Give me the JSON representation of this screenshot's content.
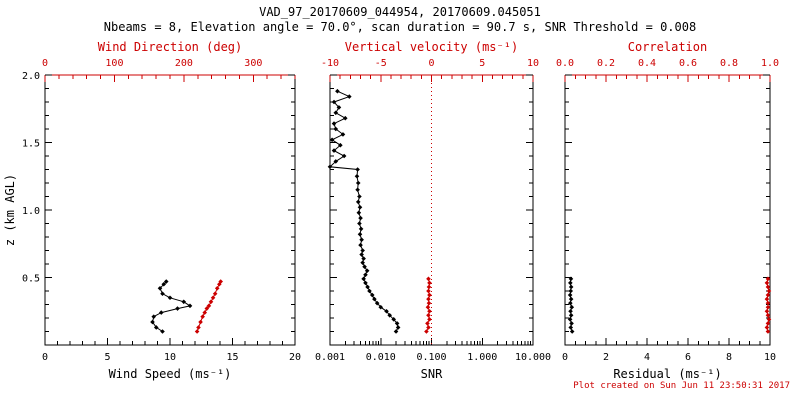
{
  "header": {
    "title": "VAD_97_20170609_044954, 20170609.045051",
    "subtitle": "Nbeams = 8, Elevation angle = 70.0°, scan duration = 90.7 s, SNR Threshold = 0.008"
  },
  "footer": {
    "created": "Plot created on Sun Jun 11 23:50:31 2017"
  },
  "colors": {
    "axis_black": "#000000",
    "overlay_red": "#cc0000",
    "background": "#ffffff"
  },
  "chart_data": [
    {
      "type": "line",
      "name": "wind-speed-direction",
      "ylabel": "z (km AGL)",
      "ylim": [
        0,
        2
      ],
      "yticks": [
        0.5,
        1.0,
        1.5,
        2.0
      ],
      "ytick_labels": [
        "0.5",
        "1.0",
        "1.5",
        "2.0"
      ],
      "y_minor": 0.1,
      "bottom_axis": {
        "label": "Wind Speed (ms⁻¹)",
        "lim": [
          0,
          20
        ],
        "ticks": [
          0,
          5,
          10,
          15,
          20
        ],
        "tick_labels": [
          "0",
          "5",
          "10",
          "15",
          "20"
        ],
        "minor": 1,
        "color": "#000000"
      },
      "top_axis": {
        "label": "Wind Direction (deg)",
        "lim": [
          0,
          360
        ],
        "ticks": [
          0,
          100,
          200,
          300
        ],
        "tick_labels": [
          "0",
          "100",
          "200",
          "300"
        ],
        "minor": 20,
        "color": "#cc0000"
      },
      "series": [
        {
          "name": "wind-speed",
          "axis": "bottom",
          "color": "#000000",
          "points": [
            [
              9.4,
              0.1
            ],
            [
              8.9,
              0.13
            ],
            [
              8.6,
              0.17
            ],
            [
              8.7,
              0.21
            ],
            [
              9.3,
              0.24
            ],
            [
              10.6,
              0.27
            ],
            [
              11.6,
              0.29
            ],
            [
              11.1,
              0.32
            ],
            [
              10.0,
              0.35
            ],
            [
              9.4,
              0.38
            ],
            [
              9.2,
              0.42
            ],
            [
              9.5,
              0.45
            ],
            [
              9.7,
              0.47
            ]
          ]
        },
        {
          "name": "wind-direction",
          "axis": "top",
          "color": "#cc0000",
          "points": [
            [
              219,
              0.1
            ],
            [
              221,
              0.13
            ],
            [
              224,
              0.17
            ],
            [
              227,
              0.21
            ],
            [
              230,
              0.24
            ],
            [
              233,
              0.27
            ],
            [
              236,
              0.29
            ],
            [
              239,
              0.32
            ],
            [
              242,
              0.35
            ],
            [
              245,
              0.38
            ],
            [
              248,
              0.42
            ],
            [
              251,
              0.45
            ],
            [
              253,
              0.47
            ]
          ]
        }
      ]
    },
    {
      "type": "line",
      "name": "snr-vertical-velocity",
      "ylim": [
        0,
        2
      ],
      "yticks": [
        0.5,
        1.0,
        1.5,
        2.0
      ],
      "y_minor": 0.1,
      "bottom_axis": {
        "label": "SNR",
        "lim": [
          0.001,
          10
        ],
        "log": true,
        "ticks": [
          0.001,
          0.01,
          0.1,
          1,
          10
        ],
        "tick_labels": [
          "0.001",
          "0.010",
          "0.100",
          "1.000",
          "10.000"
        ],
        "color": "#000000"
      },
      "top_axis": {
        "label": "Vertical velocity (ms⁻¹)",
        "lim": [
          -10,
          10
        ],
        "ticks": [
          -10,
          -5,
          0,
          5,
          10
        ],
        "tick_labels": [
          "-10",
          "-5",
          "0",
          "5",
          "10"
        ],
        "minor": 1,
        "color": "#cc0000",
        "zero_line": true
      },
      "series": [
        {
          "name": "snr-profile",
          "axis": "bottom",
          "color": "#000000",
          "points": [
            [
              0.02,
              0.1
            ],
            [
              0.022,
              0.13
            ],
            [
              0.021,
              0.16
            ],
            [
              0.018,
              0.19
            ],
            [
              0.015,
              0.22
            ],
            [
              0.013,
              0.25
            ],
            [
              0.01,
              0.28
            ],
            [
              0.0085,
              0.31
            ],
            [
              0.0075,
              0.34
            ],
            [
              0.0068,
              0.37
            ],
            [
              0.006,
              0.4
            ],
            [
              0.0055,
              0.43
            ],
            [
              0.005,
              0.46
            ],
            [
              0.0046,
              0.49
            ],
            [
              0.005,
              0.52
            ],
            [
              0.0054,
              0.55
            ],
            [
              0.0048,
              0.58
            ],
            [
              0.0044,
              0.61
            ],
            [
              0.0046,
              0.64
            ],
            [
              0.0042,
              0.67
            ],
            [
              0.0044,
              0.7
            ],
            [
              0.004,
              0.74
            ],
            [
              0.0042,
              0.78
            ],
            [
              0.0039,
              0.82
            ],
            [
              0.0041,
              0.86
            ],
            [
              0.0038,
              0.9
            ],
            [
              0.004,
              0.94
            ],
            [
              0.0037,
              0.98
            ],
            [
              0.0039,
              1.02
            ],
            [
              0.0036,
              1.06
            ],
            [
              0.0038,
              1.1
            ],
            [
              0.0035,
              1.15
            ],
            [
              0.0036,
              1.2
            ],
            [
              0.0034,
              1.25
            ],
            [
              0.0035,
              1.3
            ],
            [
              0.001,
              1.32
            ],
            [
              0.0013,
              1.36
            ],
            [
              0.0019,
              1.4
            ],
            [
              0.0012,
              1.44
            ],
            [
              0.0016,
              1.48
            ],
            [
              0.0011,
              1.52
            ],
            [
              0.0018,
              1.56
            ],
            [
              0.0013,
              1.6
            ],
            [
              0.0012,
              1.64
            ],
            [
              0.002,
              1.68
            ],
            [
              0.0013,
              1.72
            ],
            [
              0.0015,
              1.76
            ],
            [
              0.0012,
              1.8
            ],
            [
              0.0024,
              1.84
            ],
            [
              0.0014,
              1.88
            ]
          ]
        },
        {
          "name": "vertical-velocity",
          "axis": "top",
          "color": "#cc0000",
          "points": [
            [
              -0.5,
              0.1
            ],
            [
              -0.3,
              0.13
            ],
            [
              -0.4,
              0.16
            ],
            [
              -0.2,
              0.19
            ],
            [
              -0.3,
              0.22
            ],
            [
              -0.2,
              0.25
            ],
            [
              -0.35,
              0.28
            ],
            [
              -0.25,
              0.31
            ],
            [
              -0.3,
              0.34
            ],
            [
              -0.2,
              0.37
            ],
            [
              -0.3,
              0.4
            ],
            [
              -0.25,
              0.43
            ],
            [
              -0.2,
              0.46
            ],
            [
              -0.3,
              0.49
            ]
          ]
        }
      ]
    },
    {
      "type": "line",
      "name": "residual-correlation",
      "ylim": [
        0,
        2
      ],
      "yticks": [
        0.5,
        1.0,
        1.5,
        2.0
      ],
      "y_minor": 0.1,
      "bottom_axis": {
        "label": "Residual (ms⁻¹)",
        "lim": [
          0,
          10
        ],
        "ticks": [
          0,
          2,
          4,
          6,
          8,
          10
        ],
        "tick_labels": [
          "0",
          "2",
          "4",
          "6",
          "8",
          "10"
        ],
        "minor": 0.5,
        "color": "#000000"
      },
      "top_axis": {
        "label": "Correlation",
        "lim": [
          0,
          1
        ],
        "ticks": [
          0,
          0.2,
          0.4,
          0.6,
          0.8,
          1.0
        ],
        "tick_labels": [
          "0.0",
          "0.2",
          "0.4",
          "0.6",
          "0.8",
          "1.0"
        ],
        "minor": 0.05,
        "color": "#cc0000"
      },
      "series": [
        {
          "name": "residual",
          "axis": "bottom",
          "color": "#000000",
          "points": [
            [
              0.35,
              0.1
            ],
            [
              0.28,
              0.13
            ],
            [
              0.32,
              0.16
            ],
            [
              0.25,
              0.19
            ],
            [
              0.3,
              0.22
            ],
            [
              0.27,
              0.25
            ],
            [
              0.33,
              0.28
            ],
            [
              0.26,
              0.31
            ],
            [
              0.3,
              0.34
            ],
            [
              0.25,
              0.37
            ],
            [
              0.28,
              0.4
            ],
            [
              0.3,
              0.43
            ],
            [
              0.26,
              0.46
            ],
            [
              0.29,
              0.49
            ]
          ]
        },
        {
          "name": "correlation",
          "axis": "top",
          "color": "#cc0000",
          "points": [
            [
              0.99,
              0.1
            ],
            [
              0.985,
              0.13
            ],
            [
              0.99,
              0.16
            ],
            [
              0.995,
              0.19
            ],
            [
              0.99,
              0.22
            ],
            [
              0.985,
              0.25
            ],
            [
              0.99,
              0.28
            ],
            [
              0.99,
              0.31
            ],
            [
              0.985,
              0.34
            ],
            [
              0.99,
              0.37
            ],
            [
              0.995,
              0.4
            ],
            [
              0.99,
              0.43
            ],
            [
              0.985,
              0.46
            ],
            [
              0.99,
              0.49
            ]
          ]
        }
      ]
    }
  ]
}
